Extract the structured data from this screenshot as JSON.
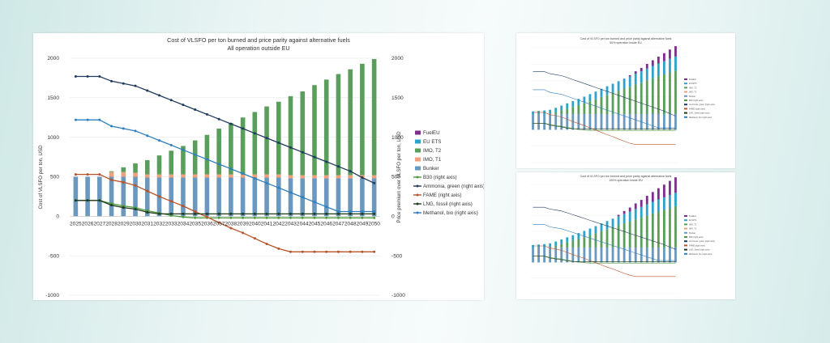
{
  "main_chart": {
    "title": "Cost of VLSFO per ton burned and price parity against alternative fuels",
    "subtitle": "All operation outside EU",
    "ylabel_left": "Cost of VLSFO per ton, USD",
    "ylabel_right": "Price premium over VLSFO per ton, USD"
  },
  "thumb_a": {
    "title": "Cost of VLSFO per ton burned and price parity against alternative fuels",
    "subtitle": "50% operation inside EU"
  },
  "thumb_b": {
    "title": "Cost of VLSFO per ton burned and price parity against alternative fuels",
    "subtitle": "100% operation inside EU"
  },
  "chart_data": {
    "type": "bar",
    "stacked": true,
    "x": [
      2025,
      2026,
      2027,
      2028,
      2029,
      2030,
      2031,
      2032,
      2033,
      2034,
      2035,
      2036,
      2037,
      2038,
      2039,
      2040,
      2041,
      2042,
      2043,
      2044,
      2045,
      2046,
      2047,
      2048,
      2049,
      2050
    ],
    "ylim_left": [
      -1000,
      2000
    ],
    "ylim_right": [
      -1000,
      2000
    ],
    "yticks": [
      -1000,
      -500,
      0,
      500,
      1000,
      1500,
      2000
    ],
    "legend_position": "right",
    "bar_series": [
      {
        "name": "FuelEU",
        "color": "#7f2e8e",
        "values": [
          0,
          0,
          0,
          0,
          0,
          0,
          0,
          0,
          0,
          0,
          0,
          0,
          0,
          0,
          0,
          0,
          0,
          0,
          0,
          0,
          0,
          0,
          0,
          0,
          0,
          0
        ]
      },
      {
        "name": "EU ETS",
        "color": "#2ea3c9",
        "values": [
          0,
          0,
          0,
          0,
          0,
          0,
          0,
          0,
          0,
          0,
          0,
          0,
          0,
          0,
          0,
          0,
          0,
          0,
          0,
          0,
          0,
          0,
          0,
          0,
          0,
          0
        ]
      },
      {
        "name": "IMO, T2",
        "color": "#5a9e5c",
        "values": [
          0,
          0,
          0,
          10,
          60,
          120,
          180,
          240,
          300,
          360,
          430,
          500,
          580,
          650,
          720,
          790,
          860,
          920,
          1000,
          1060,
          1140,
          1210,
          1280,
          1340,
          1410,
          1470
        ]
      },
      {
        "name": "IMO, T1",
        "color": "#f0a07a",
        "values": [
          0,
          0,
          0,
          60,
          60,
          50,
          40,
          40,
          40,
          40,
          40,
          40,
          40,
          40,
          40,
          40,
          40,
          40,
          40,
          40,
          40,
          40,
          40,
          40,
          40,
          40
        ]
      },
      {
        "name": "Bunker",
        "color": "#6a98bf",
        "values": [
          500,
          500,
          500,
          500,
          500,
          500,
          490,
          490,
          490,
          490,
          490,
          490,
          490,
          490,
          490,
          490,
          490,
          490,
          480,
          480,
          480,
          480,
          480,
          480,
          480,
          480
        ]
      }
    ],
    "line_series": [
      {
        "name": "B30 (right axis)",
        "color": "#4f9a3a",
        "values": [
          200,
          200,
          200,
          160,
          130,
          110,
          70,
          40,
          10,
          -10,
          -20,
          -20,
          -20,
          -20,
          -20,
          -20,
          -20,
          -20,
          -20,
          -20,
          -20,
          -20,
          -20,
          -20,
          -20,
          -20
        ]
      },
      {
        "name": "Ammonia, green (right axis)",
        "color": "#1f3b5c",
        "values": [
          1770,
          1770,
          1770,
          1710,
          1680,
          1650,
          1590,
          1530,
          1470,
          1410,
          1350,
          1290,
          1230,
          1170,
          1110,
          1050,
          990,
          930,
          870,
          810,
          750,
          690,
          630,
          570,
          490,
          420
        ]
      },
      {
        "name": "FAME (right axis)",
        "color": "#b8532a",
        "values": [
          530,
          530,
          530,
          460,
          430,
          390,
          320,
          250,
          190,
          130,
          60,
          -10,
          -80,
          -150,
          -210,
          -280,
          -350,
          -410,
          -450,
          -450,
          -450,
          -450,
          -450,
          -450,
          -450,
          -450
        ]
      },
      {
        "name": "LNG, fossil (right axis)",
        "color": "#1e3a1e",
        "values": [
          200,
          200,
          200,
          140,
          110,
          90,
          50,
          30,
          30,
          30,
          30,
          30,
          30,
          30,
          30,
          30,
          30,
          30,
          30,
          30,
          30,
          30,
          30,
          30,
          30,
          30
        ]
      },
      {
        "name": "Methanol, bio (right axis)",
        "color": "#2e7fbf",
        "values": [
          1220,
          1220,
          1220,
          1140,
          1110,
          1080,
          1020,
          960,
          900,
          840,
          780,
          720,
          660,
          600,
          540,
          480,
          420,
          360,
          300,
          240,
          180,
          120,
          60,
          60,
          60,
          60
        ]
      }
    ]
  }
}
